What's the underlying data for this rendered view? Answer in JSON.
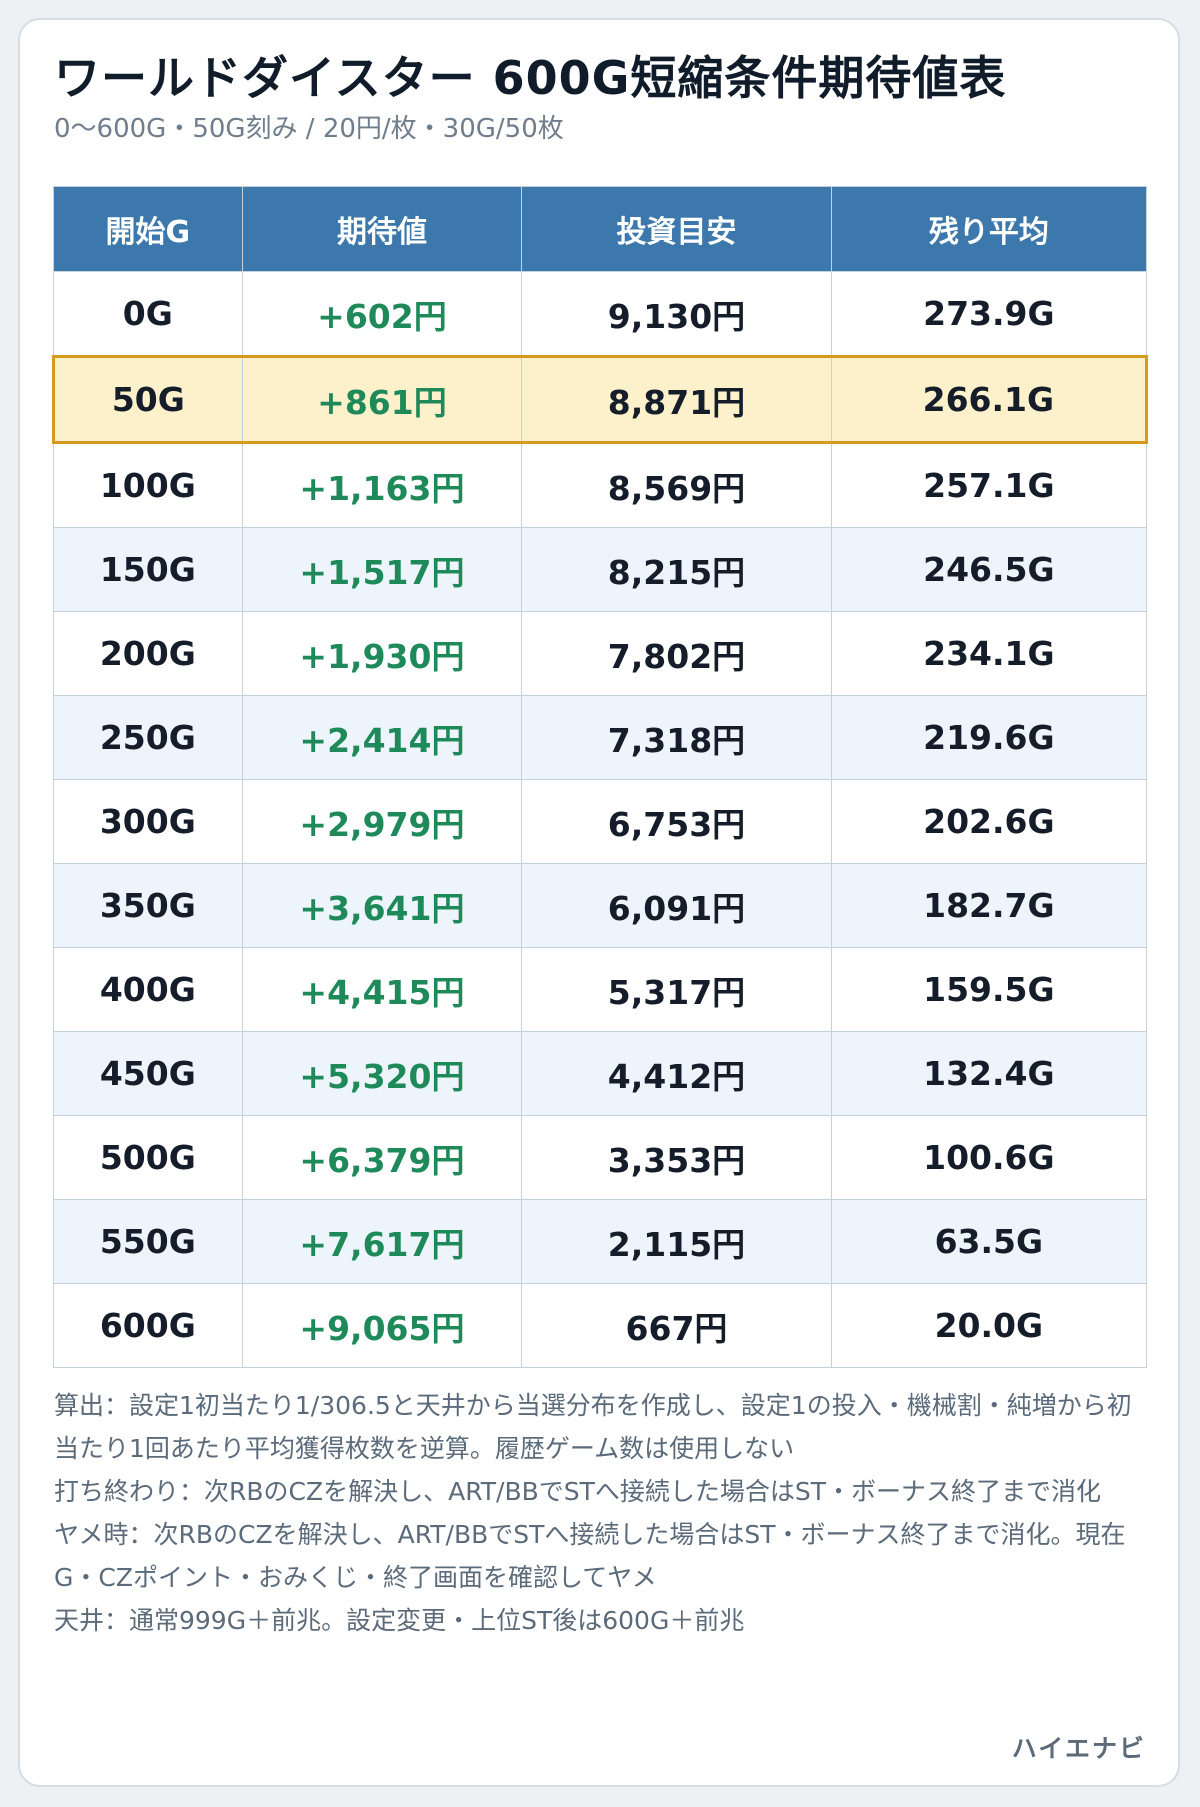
{
  "header": {
    "title": "ワールドダイスター 600G短縮条件期待値表",
    "subtitle": "0〜600G・50G刻み / 20円/枚・30G/50枚"
  },
  "table": {
    "columns": [
      "開始G",
      "期待値",
      "投資目安",
      "残り平均"
    ],
    "highlight_row": "50G",
    "rows": [
      {
        "start": "0G",
        "ev": "+602円",
        "invest": "9,130円",
        "remain": "273.9G"
      },
      {
        "start": "50G",
        "ev": "+861円",
        "invest": "8,871円",
        "remain": "266.1G"
      },
      {
        "start": "100G",
        "ev": "+1,163円",
        "invest": "8,569円",
        "remain": "257.1G"
      },
      {
        "start": "150G",
        "ev": "+1,517円",
        "invest": "8,215円",
        "remain": "246.5G"
      },
      {
        "start": "200G",
        "ev": "+1,930円",
        "invest": "7,802円",
        "remain": "234.1G"
      },
      {
        "start": "250G",
        "ev": "+2,414円",
        "invest": "7,318円",
        "remain": "219.6G"
      },
      {
        "start": "300G",
        "ev": "+2,979円",
        "invest": "6,753円",
        "remain": "202.6G"
      },
      {
        "start": "350G",
        "ev": "+3,641円",
        "invest": "6,091円",
        "remain": "182.7G"
      },
      {
        "start": "400G",
        "ev": "+4,415円",
        "invest": "5,317円",
        "remain": "159.5G"
      },
      {
        "start": "450G",
        "ev": "+5,320円",
        "invest": "4,412円",
        "remain": "132.4G"
      },
      {
        "start": "500G",
        "ev": "+6,379円",
        "invest": "3,353円",
        "remain": "100.6G"
      },
      {
        "start": "550G",
        "ev": "+7,617円",
        "invest": "2,115円",
        "remain": "63.5G"
      },
      {
        "start": "600G",
        "ev": "+9,065円",
        "invest": "667円",
        "remain": "20.0G"
      }
    ]
  },
  "notes": [
    "算出：設定1初当たり1/306.5と天井から当選分布を作成し、設定1の投入・機械割・純増から初当たり1回あたり平均獲得枚数を逆算。履歴ゲーム数は使用しない",
    "打ち終わり：次RBのCZを解決し、ART/BBでSTへ接続した場合はST・ボーナス終了まで消化",
    "ヤメ時：次RBのCZを解決し、ART/BBでSTへ接続した場合はST・ボーナス終了まで消化。現在G・CZポイント・おみくじ・終了画面を確認してヤメ",
    "天井：通常999G＋前兆。設定変更・上位ST後は600G＋前兆"
  ],
  "brand": "ハイエナビ",
  "colors": {
    "header_bg": "#3d78ad",
    "ev_positive": "#1e8a5a",
    "highlight_bg": "#fdf1cb",
    "highlight_border": "#d79a1c"
  }
}
